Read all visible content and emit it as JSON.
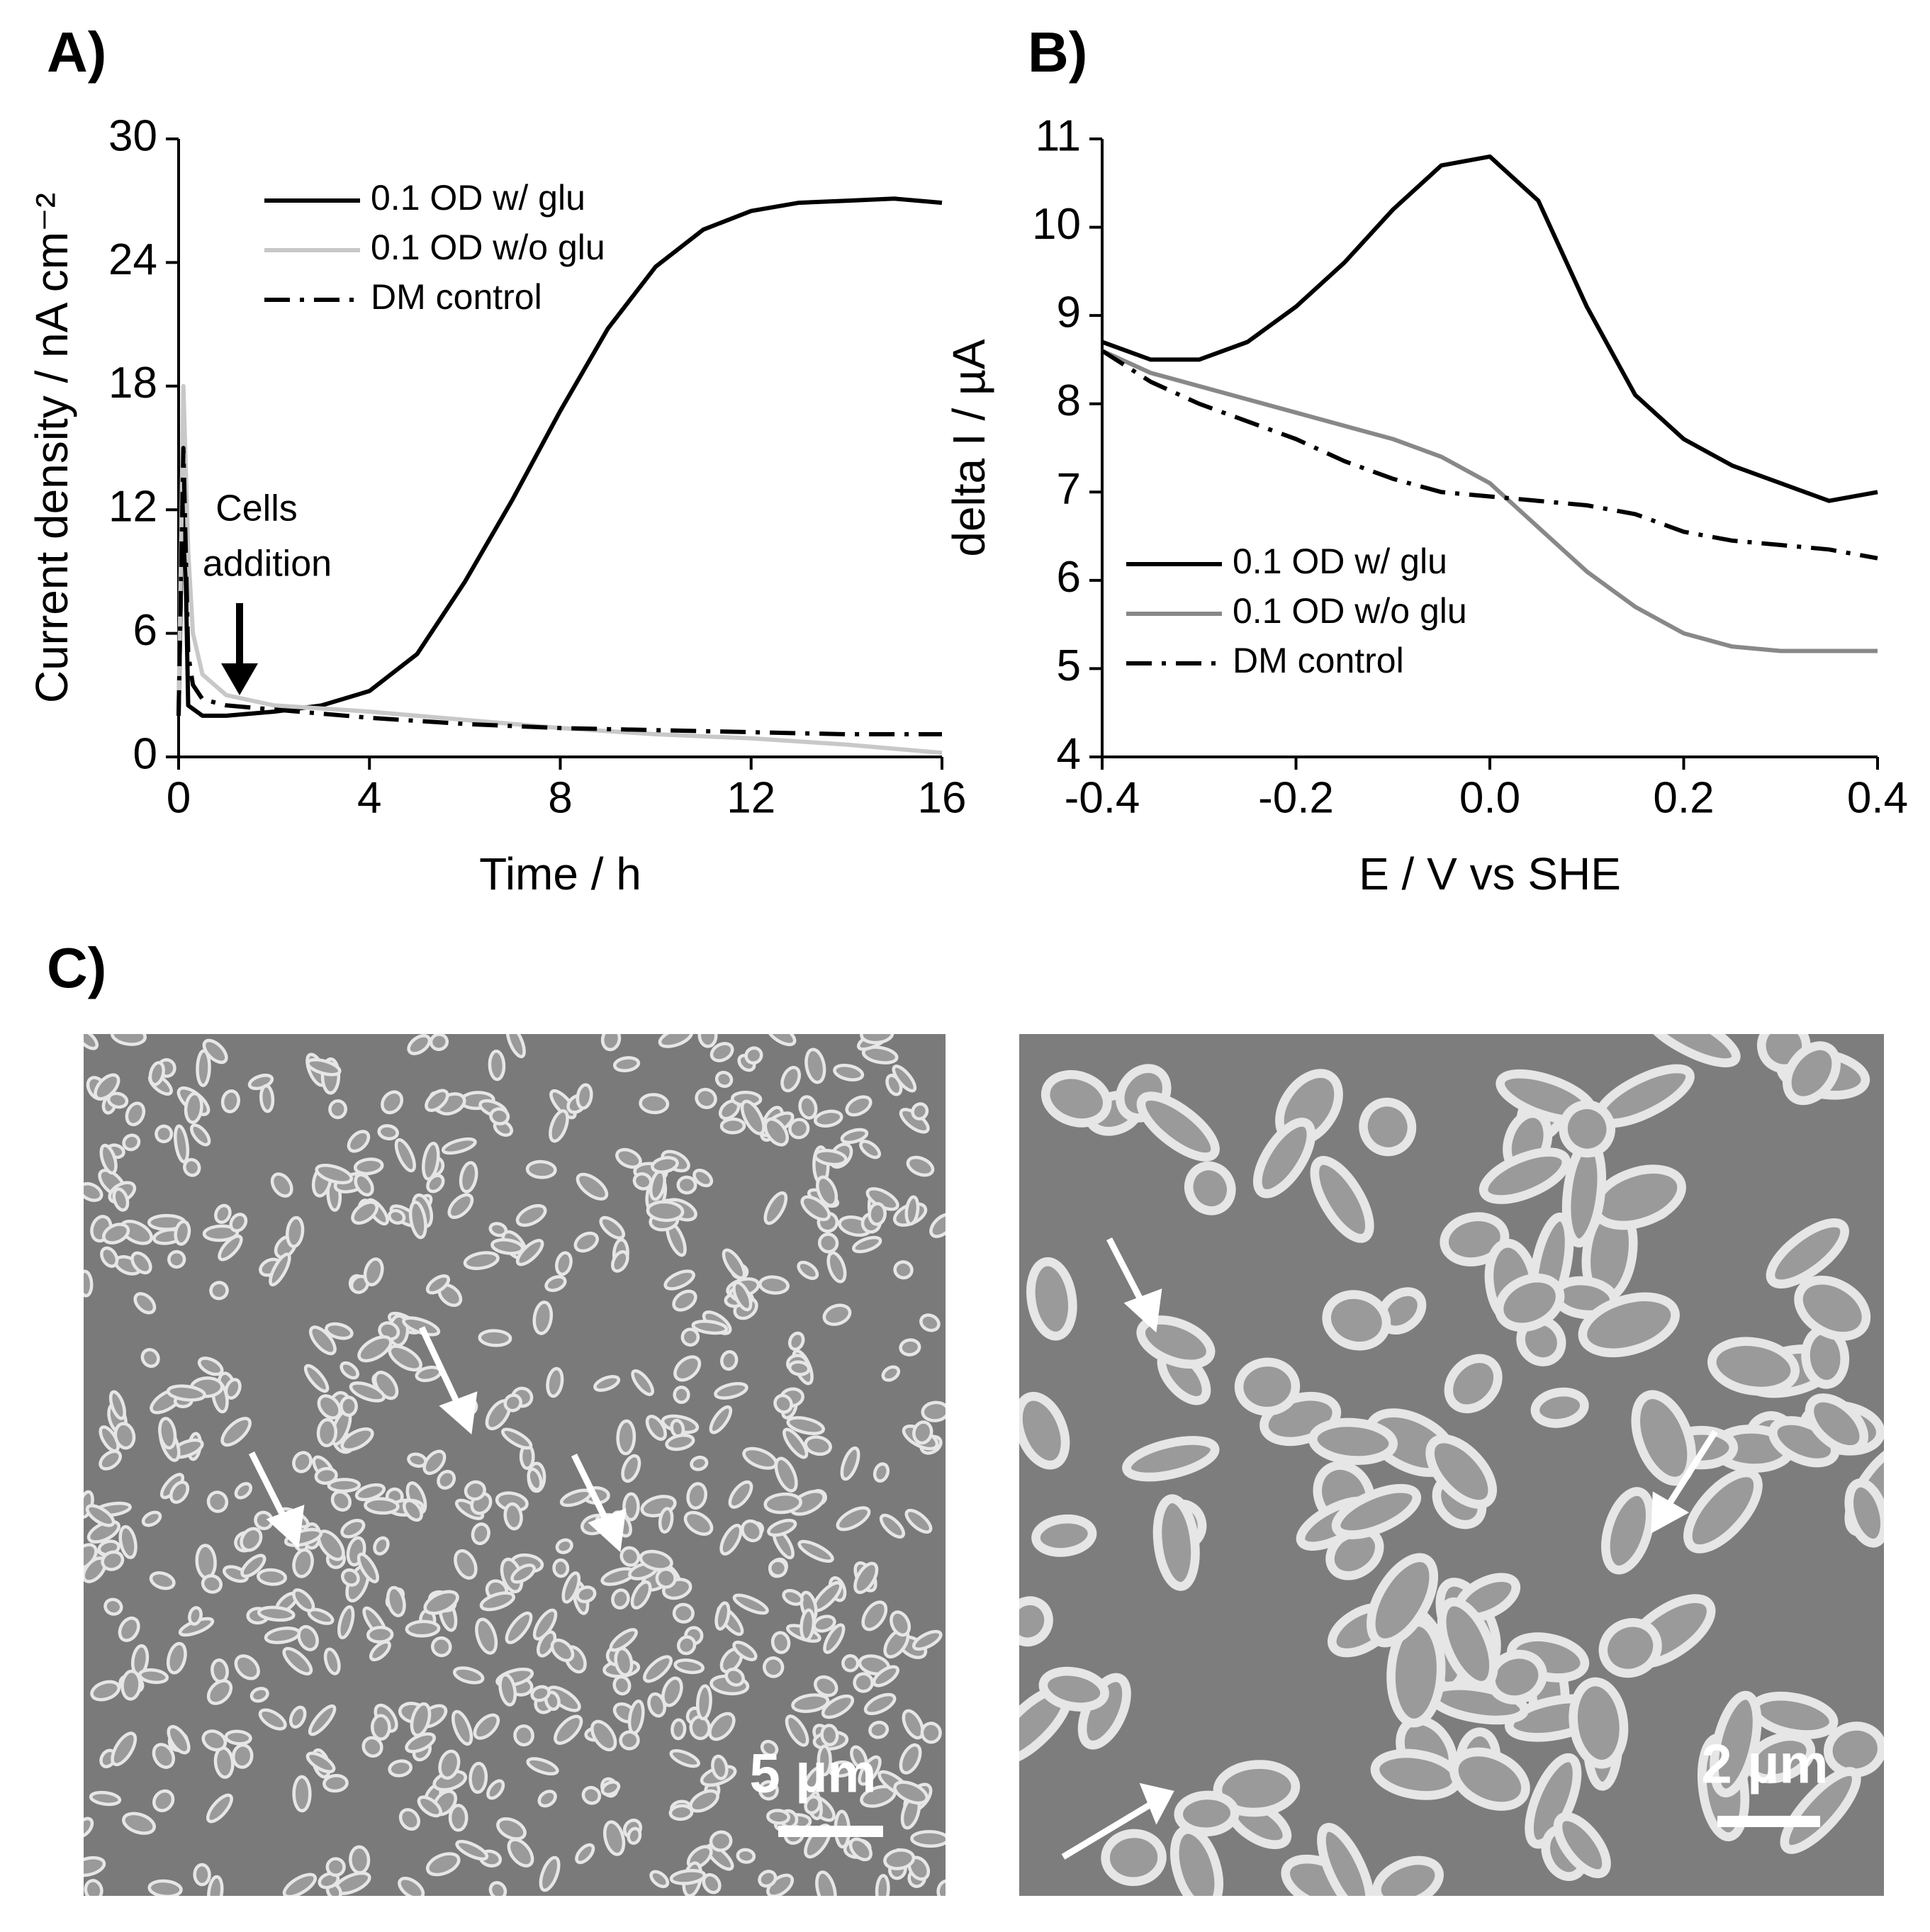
{
  "chart_data": [
    {
      "type": "line",
      "panel_label": "A)",
      "xlabel": "Time / h",
      "ylabel": "Current density / nA cm⁻²",
      "xlim": [
        0,
        16
      ],
      "xticks": [
        0,
        4,
        8,
        12,
        16
      ],
      "ylim": [
        0,
        30
      ],
      "yticks": [
        0,
        6,
        12,
        18,
        24,
        30
      ],
      "legend": "upper-center",
      "annotation": [
        "Cells",
        "addition"
      ],
      "series": [
        {
          "name": "0.1 OD w/ glu",
          "color": "#000000",
          "dash": "solid",
          "x": [
            0,
            0.1,
            0.2,
            0.5,
            1,
            2,
            3,
            4,
            5,
            6,
            7,
            8,
            9,
            10,
            11,
            12,
            13,
            14,
            15,
            16
          ],
          "values": [
            2,
            15,
            2.5,
            2,
            2,
            2.2,
            2.5,
            3.2,
            5,
            8.5,
            12.5,
            16.8,
            20.8,
            23.8,
            25.6,
            26.5,
            26.9,
            27,
            27.1,
            26.9
          ]
        },
        {
          "name": "0.1 OD w/o glu",
          "color": "#c8c8c8",
          "dash": "solid",
          "x": [
            0,
            0.1,
            0.2,
            0.3,
            0.5,
            1,
            2,
            4,
            6,
            8,
            10,
            12,
            14,
            16
          ],
          "values": [
            2,
            18,
            10,
            6,
            4,
            3,
            2.5,
            2.2,
            1.8,
            1.4,
            1.1,
            0.9,
            0.6,
            0.2
          ]
        },
        {
          "name": "DM control",
          "color": "#000000",
          "dash": "dashdot",
          "x": [
            0,
            0.1,
            0.2,
            0.3,
            0.5,
            1,
            2,
            4,
            6,
            8,
            10,
            12,
            14,
            16
          ],
          "values": [
            2,
            15,
            5,
            3.5,
            2.8,
            2.5,
            2.3,
            1.9,
            1.6,
            1.4,
            1.3,
            1.2,
            1.1,
            1.1
          ]
        }
      ]
    },
    {
      "type": "line",
      "panel_label": "B)",
      "xlabel": "E / V vs SHE",
      "ylabel": "delta I / µA",
      "xlim": [
        -0.4,
        0.4
      ],
      "xticks": [
        -0.4,
        -0.2,
        {
          "value": 0,
          "label": "0.0"
        },
        0.2,
        0.4
      ],
      "ylim": [
        4,
        11
      ],
      "yticks": [
        4,
        5,
        6,
        7,
        8,
        9,
        10,
        11
      ],
      "legend": "lower-left",
      "series": [
        {
          "name": "0.1 OD w/ glu",
          "color": "#000000",
          "dash": "solid",
          "x": [
            -0.4,
            -0.35,
            -0.3,
            -0.25,
            -0.2,
            -0.15,
            -0.1,
            -0.05,
            0,
            0.05,
            0.1,
            0.15,
            0.2,
            0.25,
            0.3,
            0.35,
            0.4
          ],
          "values": [
            8.7,
            8.5,
            8.5,
            8.7,
            9.1,
            9.6,
            10.2,
            10.7,
            10.8,
            10.3,
            9.1,
            8.1,
            7.6,
            7.3,
            7.1,
            6.9,
            7.0
          ]
        },
        {
          "name": "0.1 OD w/o glu",
          "color": "#888888",
          "dash": "solid",
          "x": [
            -0.4,
            -0.35,
            -0.3,
            -0.25,
            -0.2,
            -0.15,
            -0.1,
            -0.05,
            0,
            0.05,
            0.1,
            0.15,
            0.2,
            0.25,
            0.3,
            0.35,
            0.4
          ],
          "values": [
            8.6,
            8.35,
            8.2,
            8.05,
            7.9,
            7.75,
            7.6,
            7.4,
            7.1,
            6.6,
            6.1,
            5.7,
            5.4,
            5.25,
            5.2,
            5.2,
            5.2
          ]
        },
        {
          "name": "DM control",
          "color": "#000000",
          "dash": "dashdot",
          "x": [
            -0.4,
            -0.35,
            -0.3,
            -0.25,
            -0.2,
            -0.15,
            -0.1,
            -0.05,
            0,
            0.05,
            0.1,
            0.15,
            0.2,
            0.25,
            0.3,
            0.35,
            0.4
          ],
          "values": [
            8.6,
            8.25,
            8.0,
            7.8,
            7.6,
            7.35,
            7.15,
            7.0,
            6.95,
            6.9,
            6.85,
            6.75,
            6.55,
            6.45,
            6.4,
            6.35,
            6.25
          ]
        }
      ]
    }
  ],
  "images": {
    "panel_label": "C)",
    "scale_bars": [
      "5 µm",
      "2 µm"
    ]
  }
}
